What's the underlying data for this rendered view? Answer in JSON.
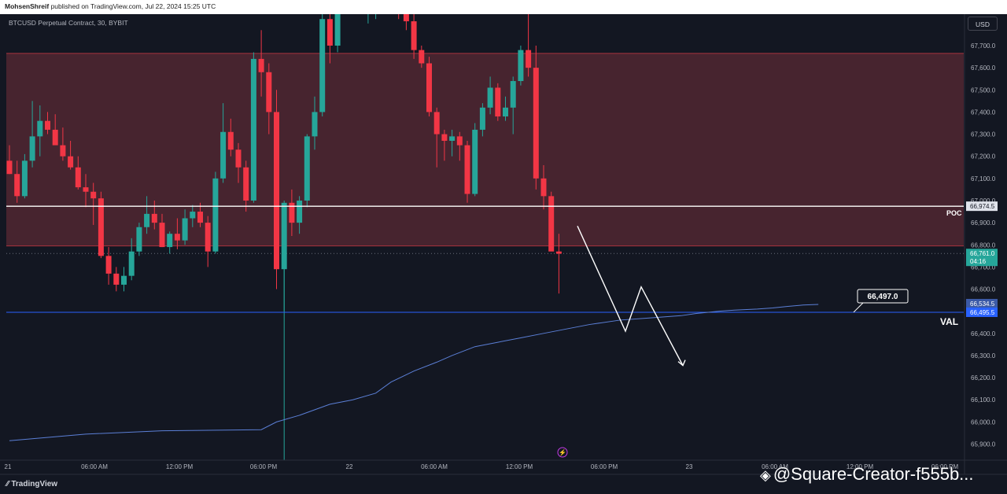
{
  "header": {
    "author": "MohsenShreif",
    "text": "published on TradingView.com, Jul 22, 2024 15:25 UTC"
  },
  "symbol_line": "BTCUSD Perpetual Contract, 30, BYBIT",
  "currency_button": "USD",
  "brand": "TradingView",
  "watermark": "@Square-Creator-f555b...",
  "colors": {
    "background": "#131722",
    "up": "#26a69a",
    "down": "#f23645",
    "zone": "#4a2530",
    "vwap": "#5b7fd6",
    "val_line": "#2962ff"
  },
  "chart_data": {
    "type": "candlestick",
    "title": "BTCUSD Perpetual Contract, 30, BYBIT",
    "ylim": [
      65850,
      67850
    ],
    "y_ticks": [
      "67,700.0",
      "67,600.0",
      "67,500.0",
      "67,400.0",
      "67,300.0",
      "67,200.0",
      "67,100.0",
      "67,000.0",
      "66,900.0",
      "66,800.0",
      "66,700.0",
      "66,600.0",
      "66,500.0",
      "66,400.0",
      "66,300.0",
      "66,200.0",
      "66,100.0",
      "66,000.0",
      "65,900.0"
    ],
    "x_ticks": [
      "21",
      "06:00 AM",
      "12:00 PM",
      "06:00 PM",
      "22",
      "06:00 AM",
      "12:00 PM",
      "06:00 PM",
      "23",
      "06:00 AM",
      "12:00 PM",
      "06:00 PM"
    ],
    "grid": false,
    "supply_zone": {
      "top": 67665,
      "bottom": 66795
    },
    "poc": {
      "label": "POC",
      "price": 66974.5,
      "price_label": "66,974.5"
    },
    "val": {
      "label": "VAL",
      "price": 66495.5,
      "price_label": "66,495.5",
      "callout": "66,497.0"
    },
    "last_price": {
      "price": 66761.0,
      "label": "66,761.0",
      "countdown": "04:16"
    },
    "vwap_price_label": "66,534.5",
    "candles": [
      [
        67180,
        67250,
        67120,
        67120
      ],
      [
        67120,
        67180,
        66990,
        67020
      ],
      [
        67020,
        67210,
        67010,
        67180
      ],
      [
        67180,
        67450,
        67150,
        67290
      ],
      [
        67290,
        67430,
        67200,
        67360
      ],
      [
        67360,
        67400,
        67300,
        67320
      ],
      [
        67320,
        67390,
        67270,
        67250
      ],
      [
        67250,
        67330,
        67180,
        67200
      ],
      [
        67200,
        67270,
        67140,
        67150
      ],
      [
        67150,
        67200,
        67050,
        67060
      ],
      [
        67060,
        67120,
        66970,
        67040
      ],
      [
        67040,
        67080,
        66890,
        67010
      ],
      [
        67010,
        67040,
        66740,
        66750
      ],
      [
        66750,
        66790,
        66620,
        66670
      ],
      [
        66670,
        66700,
        66590,
        66620
      ],
      [
        66620,
        66700,
        66590,
        66660
      ],
      [
        66660,
        66830,
        66640,
        66770
      ],
      [
        66770,
        66900,
        66750,
        66880
      ],
      [
        66880,
        67020,
        66850,
        66940
      ],
      [
        66940,
        67000,
        66870,
        66900
      ],
      [
        66900,
        66940,
        66790,
        66790
      ],
      [
        66790,
        66860,
        66760,
        66850
      ],
      [
        66850,
        66920,
        66780,
        66820
      ],
      [
        66820,
        66960,
        66800,
        66920
      ],
      [
        66920,
        66980,
        66880,
        66950
      ],
      [
        66950,
        66990,
        66880,
        66900
      ],
      [
        66900,
        66930,
        66700,
        66770
      ],
      [
        66770,
        67130,
        66760,
        67100
      ],
      [
        67100,
        67440,
        67080,
        67310
      ],
      [
        67310,
        67370,
        67200,
        67230
      ],
      [
        67230,
        67260,
        67080,
        67150
      ],
      [
        67150,
        67180,
        66950,
        67000
      ],
      [
        67000,
        67670,
        66990,
        67640
      ],
      [
        67640,
        67770,
        67470,
        67580
      ],
      [
        67580,
        67620,
        67300,
        67400
      ],
      [
        67400,
        67500,
        66600,
        66690
      ],
      [
        66690,
        67000,
        66500,
        66990
      ],
      [
        66990,
        67050,
        66840,
        66900
      ],
      [
        66900,
        67020,
        66850,
        67000
      ],
      [
        67000,
        67300,
        66970,
        67290
      ],
      [
        67290,
        67470,
        67230,
        67400
      ],
      [
        67400,
        67880,
        67380,
        67820
      ],
      [
        67820,
        67900,
        67620,
        67700
      ],
      [
        67700,
        67900,
        67670,
        67890
      ],
      [
        67890,
        67980,
        67870,
        67960
      ],
      [
        67960,
        67990,
        67940,
        67980
      ],
      [
        67980,
        68100,
        67880,
        67980
      ],
      [
        67980,
        68100,
        67800,
        67980
      ],
      [
        67980,
        68100,
        67820,
        67980
      ],
      [
        67980,
        68060,
        67880,
        67980
      ],
      [
        67980,
        68010,
        67880,
        67900
      ],
      [
        67900,
        68100,
        67820,
        67880
      ],
      [
        67880,
        67900,
        67770,
        67810
      ],
      [
        67810,
        67860,
        67640,
        67680
      ],
      [
        67680,
        67700,
        67600,
        67620
      ],
      [
        67620,
        67650,
        67380,
        67400
      ],
      [
        67400,
        67420,
        67150,
        67300
      ],
      [
        67300,
        67320,
        67180,
        67270
      ],
      [
        67270,
        67320,
        67200,
        67290
      ],
      [
        67290,
        67310,
        67180,
        67250
      ],
      [
        67250,
        67270,
        66990,
        67030
      ],
      [
        67030,
        67350,
        67020,
        67320
      ],
      [
        67320,
        67440,
        67290,
        67420
      ],
      [
        67420,
        67560,
        67390,
        67510
      ],
      [
        67510,
        67530,
        67360,
        67380
      ],
      [
        67380,
        67470,
        67360,
        67420
      ],
      [
        67420,
        67560,
        67300,
        67540
      ],
      [
        67540,
        67700,
        67520,
        67680
      ],
      [
        67680,
        67860,
        67560,
        67600
      ],
      [
        67600,
        67700,
        67050,
        67100
      ],
      [
        67100,
        67160,
        66960,
        67020
      ],
      [
        67020,
        67040,
        66780,
        66770
      ],
      [
        66770,
        66850,
        66580,
        66760
      ]
    ],
    "vwap": [
      [
        0,
        65915
      ],
      [
        10,
        65945
      ],
      [
        20,
        65960
      ],
      [
        33,
        65965
      ],
      [
        35,
        66000
      ],
      [
        38,
        66030
      ],
      [
        42,
        66080
      ],
      [
        45,
        66100
      ],
      [
        48,
        66130
      ],
      [
        50,
        66180
      ],
      [
        53,
        66230
      ],
      [
        56,
        66270
      ],
      [
        58,
        66300
      ],
      [
        61,
        66340
      ],
      [
        64,
        66360
      ],
      [
        67,
        66380
      ],
      [
        70,
        66400
      ],
      [
        73,
        66420
      ],
      [
        76,
        66440
      ],
      [
        80,
        66460
      ],
      [
        84,
        66470
      ],
      [
        88,
        66480
      ],
      [
        90,
        66490
      ],
      [
        93,
        66500
      ],
      [
        95,
        66505
      ],
      [
        98,
        66510
      ],
      [
        100,
        66515
      ],
      [
        102,
        66522
      ],
      [
        104,
        66528
      ],
      [
        106,
        66531
      ]
    ],
    "projection": [
      [
        66885,
        66410,
        66610,
        66255
      ]
    ]
  }
}
